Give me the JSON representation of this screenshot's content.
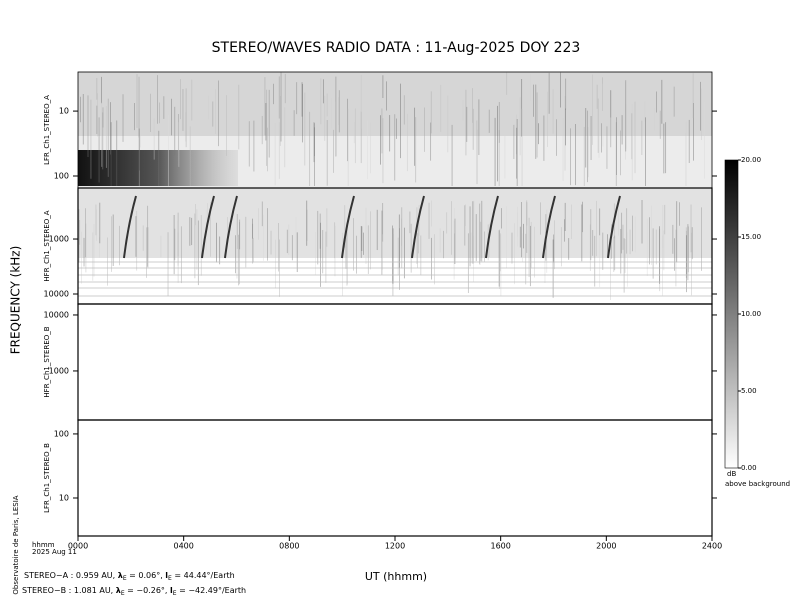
{
  "chart_data": {
    "type": "spectrogram",
    "title": "STEREO/WAVES  RADIO  DATA : 11-Aug-2025  DOY 223",
    "ylabel": "FREQUENCY (kHz)",
    "xlabel": "UT (hhmm)",
    "x_unit": "hhmm",
    "date": "2025 Aug 11",
    "xlim": [
      0,
      24
    ],
    "xticks": [
      {
        "value": 0,
        "label": "0000"
      },
      {
        "value": 4,
        "label": "0400"
      },
      {
        "value": 8,
        "label": "0800"
      },
      {
        "value": 12,
        "label": "1200"
      },
      {
        "value": 16,
        "label": "1600"
      },
      {
        "value": 20,
        "label": "2000"
      },
      {
        "value": 24,
        "label": "2400"
      }
    ],
    "log_scale": true,
    "panels": [
      {
        "label": "LFR_Ch1_STEREO_A",
        "ylim": [
          153,
          2.5
        ],
        "yticks": [
          10,
          100
        ]
      },
      {
        "label": "HFR_Ch1_STEREO_A",
        "ylim": [
          15200,
          118
        ],
        "yticks": [
          1000,
          10000
        ]
      },
      {
        "label": "HFR_Ch1_STEREO_B",
        "ylim": [
          133,
          15700
        ],
        "yticks": [
          1000,
          10000
        ]
      },
      {
        "label": "LFR_Ch1_STEREO_B",
        "ylim": [
          2.55,
          165
        ],
        "yticks": [
          10,
          100
        ]
      }
    ],
    "colorbar": {
      "lim": [
        0,
        20
      ],
      "ticks": [
        {
          "value": 0,
          "label": "0.00"
        },
        {
          "value": 5,
          "label": "5.00"
        },
        {
          "value": 10,
          "label": "10.00"
        },
        {
          "value": 15,
          "label": "15.00"
        },
        {
          "value": 20,
          "label": "20.00"
        }
      ],
      "unit": "dB",
      "note": "above background"
    },
    "credit": "Observatoire de Paris, LESIA",
    "footer": [
      [
        "STEREO−A : 0.959 AU, ",
        "λ",
        "E",
        " = 0.06°, ",
        "l",
        "E",
        " = 44.44°/Earth"
      ],
      [
        "STEREO−B : 1.081 AU, ",
        "λ",
        "E",
        " = −0.26°, ",
        "l",
        "E",
        " = −42.49°/Earth"
      ]
    ]
  }
}
